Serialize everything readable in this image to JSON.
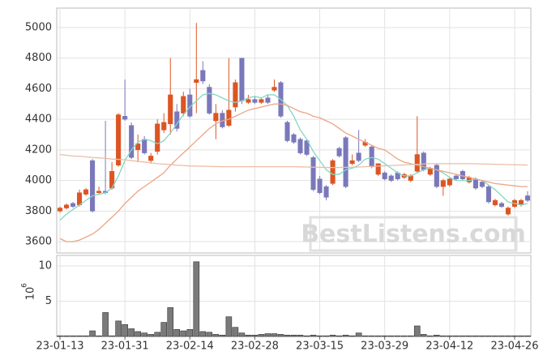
{
  "chart_data": {
    "type": "candlestick",
    "categories": [
      "23-01-13",
      null,
      null,
      null,
      null,
      null,
      null,
      null,
      null,
      null,
      "23-01-31",
      null,
      null,
      null,
      null,
      null,
      null,
      null,
      null,
      null,
      "23-02-14",
      null,
      null,
      null,
      null,
      null,
      null,
      null,
      null,
      null,
      "23-02-28",
      null,
      null,
      null,
      null,
      null,
      null,
      null,
      null,
      null,
      "23-03-15",
      null,
      null,
      null,
      null,
      null,
      null,
      null,
      null,
      null,
      "23-03-29",
      null,
      null,
      null,
      null,
      null,
      null,
      null,
      null,
      null,
      "23-04-12",
      null,
      null,
      null,
      null,
      null,
      null,
      null,
      null,
      null,
      "23-04-26",
      null,
      null
    ],
    "open": [
      3800,
      3820,
      3850,
      3840,
      3910,
      4130,
      3920,
      3930,
      3950,
      4100,
      4420,
      4360,
      4200,
      4270,
      4130,
      4190,
      4330,
      4370,
      4450,
      4440,
      4560,
      4640,
      4720,
      4610,
      4390,
      4440,
      4360,
      4480,
      4800,
      4510,
      4530,
      4510,
      4540,
      4590,
      4640,
      4380,
      4300,
      4270,
      4260,
      4150,
      4010,
      3960,
      3980,
      4210,
      4280,
      4110,
      4180,
      4230,
      4220,
      4040,
      4050,
      4030,
      4050,
      4020,
      4000,
      4060,
      4180,
      4040,
      4100,
      3960,
      3970,
      4030,
      4060,
      3990,
      4010,
      3990,
      3960,
      3840,
      3850,
      3780,
      3830,
      3840,
      3900
    ],
    "high": [
      3830,
      3850,
      3860,
      3940,
      3950,
      4140,
      3960,
      4390,
      4120,
      4440,
      4660,
      4380,
      4300,
      4290,
      4180,
      4400,
      4440,
      4800,
      4500,
      4580,
      4600,
      5030,
      4780,
      4630,
      4500,
      4460,
      4800,
      4660,
      4800,
      4560,
      4550,
      4540,
      4560,
      4660,
      4650,
      4390,
      4310,
      4280,
      4270,
      4160,
      4030,
      3970,
      4140,
      4220,
      4290,
      4170,
      4330,
      4270,
      4230,
      4110,
      4060,
      4040,
      4060,
      4050,
      4040,
      4420,
      4190,
      4090,
      4110,
      4010,
      4020,
      4040,
      4070,
      4030,
      4020,
      4000,
      3970,
      3880,
      3860,
      3830,
      3880,
      3880,
      3930
    ],
    "low": [
      3790,
      3810,
      3820,
      3830,
      3900,
      3790,
      3910,
      3910,
      3940,
      4090,
      4390,
      4140,
      4120,
      4170,
      4110,
      4170,
      4310,
      4300,
      4320,
      4420,
      4410,
      4440,
      4630,
      4430,
      4270,
      4340,
      4350,
      4450,
      4500,
      4500,
      4500,
      4500,
      4500,
      4580,
      4410,
      4250,
      4240,
      4170,
      4160,
      3930,
      3910,
      3870,
      3970,
      4150,
      3950,
      4100,
      4120,
      4220,
      4080,
      4030,
      4000,
      3990,
      4000,
      4010,
      3990,
      4050,
      4060,
      4030,
      3950,
      3900,
      3960,
      4000,
      4000,
      3980,
      3940,
      3950,
      3850,
      3830,
      3820,
      3770,
      3820,
      3830,
      3860
    ],
    "close": [
      3820,
      3840,
      3830,
      3920,
      3940,
      3800,
      3930,
      3920,
      4060,
      4430,
      4400,
      4150,
      4240,
      4180,
      4160,
      4370,
      4380,
      4560,
      4340,
      4550,
      4420,
      4660,
      4650,
      4440,
      4440,
      4350,
      4460,
      4640,
      4520,
      4530,
      4510,
      4530,
      4510,
      4610,
      4420,
      4260,
      4250,
      4180,
      4170,
      3940,
      3920,
      3890,
      4130,
      4160,
      3960,
      4130,
      4130,
      4250,
      4090,
      4110,
      4010,
      4000,
      4010,
      4040,
      4030,
      4170,
      4070,
      4080,
      3960,
      4000,
      4010,
      4010,
      4010,
      4020,
      3950,
      3960,
      3860,
      3870,
      3830,
      3820,
      3870,
      3870,
      3870
    ],
    "up_color": "#dc5523",
    "down_color": "#7a78bb",
    "ylim": [
      3526,
      5127
    ],
    "yticks": [
      3600,
      3800,
      4000,
      4200,
      4400,
      4600,
      4800,
      5000
    ],
    "grid": true,
    "series": [
      {
        "color": "#86d6c2",
        "values": [
          3740,
          3780,
          3810,
          3840,
          3870,
          3900,
          3910,
          3920,
          3950,
          4030,
          4130,
          4200,
          4250,
          4270,
          4260,
          4240,
          4260,
          4310,
          4370,
          4430,
          4480,
          4520,
          4560,
          4570,
          4560,
          4540,
          4520,
          4510,
          4520,
          4540,
          4550,
          4540,
          4560,
          4560,
          4530,
          4490,
          4420,
          4330,
          4270,
          4190,
          4130,
          4070,
          4040,
          4040,
          4070,
          4080,
          4100,
          4140,
          4150,
          4140,
          4110,
          4080,
          4050,
          4030,
          4030,
          4050,
          4070,
          4080,
          4070,
          4050,
          4020,
          4000,
          4000,
          4000,
          4010,
          4000,
          3970,
          3940,
          3900,
          3860,
          3850,
          3840,
          3850
        ]
      },
      {
        "color": "#eba584",
        "values": [
          3620,
          3600,
          3600,
          3610,
          3630,
          3650,
          3680,
          3720,
          3760,
          3800,
          3850,
          3890,
          3930,
          3960,
          3990,
          4020,
          4050,
          4100,
          4140,
          4180,
          4220,
          4260,
          4300,
          4340,
          4370,
          4390,
          4400,
          4420,
          4440,
          4460,
          4470,
          4480,
          4490,
          4500,
          4500,
          4490,
          4470,
          4450,
          4440,
          4420,
          4410,
          4390,
          4370,
          4340,
          4310,
          4290,
          4270,
          4250,
          4230,
          4210,
          4200,
          4170,
          4140,
          4120,
          4110,
          4100,
          4090,
          4080,
          4070,
          4060,
          4050,
          4040,
          4030,
          4020,
          4010,
          4000,
          3990,
          3980,
          3975,
          3970,
          3965,
          3960,
          3960
        ]
      },
      {
        "color": "#ebbda6",
        "values": [
          4170,
          4165,
          4160,
          4158,
          4155,
          4150,
          4148,
          4145,
          4140,
          4138,
          4135,
          4130,
          4125,
          4120,
          4115,
          4110,
          4107,
          4104,
          4100,
          4098,
          4095,
          4094,
          4093,
          4092,
          4091,
          4090,
          4090,
          4090,
          4090,
          4090,
          4090,
          4090,
          4090,
          4090,
          4090,
          4090,
          4090,
          4089,
          4088,
          4087,
          4086,
          4085,
          4085,
          4085,
          4086,
          4087,
          4088,
          4090,
          4092,
          4094,
          4096,
          4098,
          4100,
          4102,
          4104,
          4106,
          4108,
          4110,
          4110,
          4110,
          4110,
          4110,
          4110,
          4110,
          4109,
          4108,
          4107,
          4106,
          4105,
          4104,
          4103,
          4102,
          4101
        ]
      }
    ],
    "volume": {
      "values": [
        0.1,
        0.1,
        0.1,
        0.1,
        0.1,
        0.8,
        0.1,
        3.4,
        0.1,
        2.2,
        1.7,
        1.1,
        0.7,
        0.5,
        0.3,
        0.6,
        2.0,
        4.1,
        1.0,
        0.8,
        1.0,
        10.6,
        0.7,
        0.6,
        0.3,
        0.2,
        2.8,
        1.3,
        0.5,
        0.2,
        0.2,
        0.3,
        0.4,
        0.4,
        0.3,
        0.2,
        0.2,
        0.2,
        0.1,
        0.2,
        0.1,
        0.1,
        0.2,
        0.1,
        0.2,
        0.1,
        0.5,
        0.1,
        0.1,
        0.1,
        0.1,
        0.1,
        0.1,
        0.1,
        0.1,
        1.5,
        0.3,
        0.1,
        0.2,
        0.1,
        0.1,
        0.1,
        0.1,
        0.1,
        0.1,
        0.1,
        0.1,
        0.1,
        0.1,
        0.1,
        0.1,
        0.1,
        0.1
      ],
      "color": "#7a7a7a",
      "ylim": [
        0,
        11.5
      ],
      "yticks": [
        5,
        10
      ],
      "scale_base": "10",
      "scale_exponent": "6"
    },
    "watermark": "BestListens.com"
  }
}
